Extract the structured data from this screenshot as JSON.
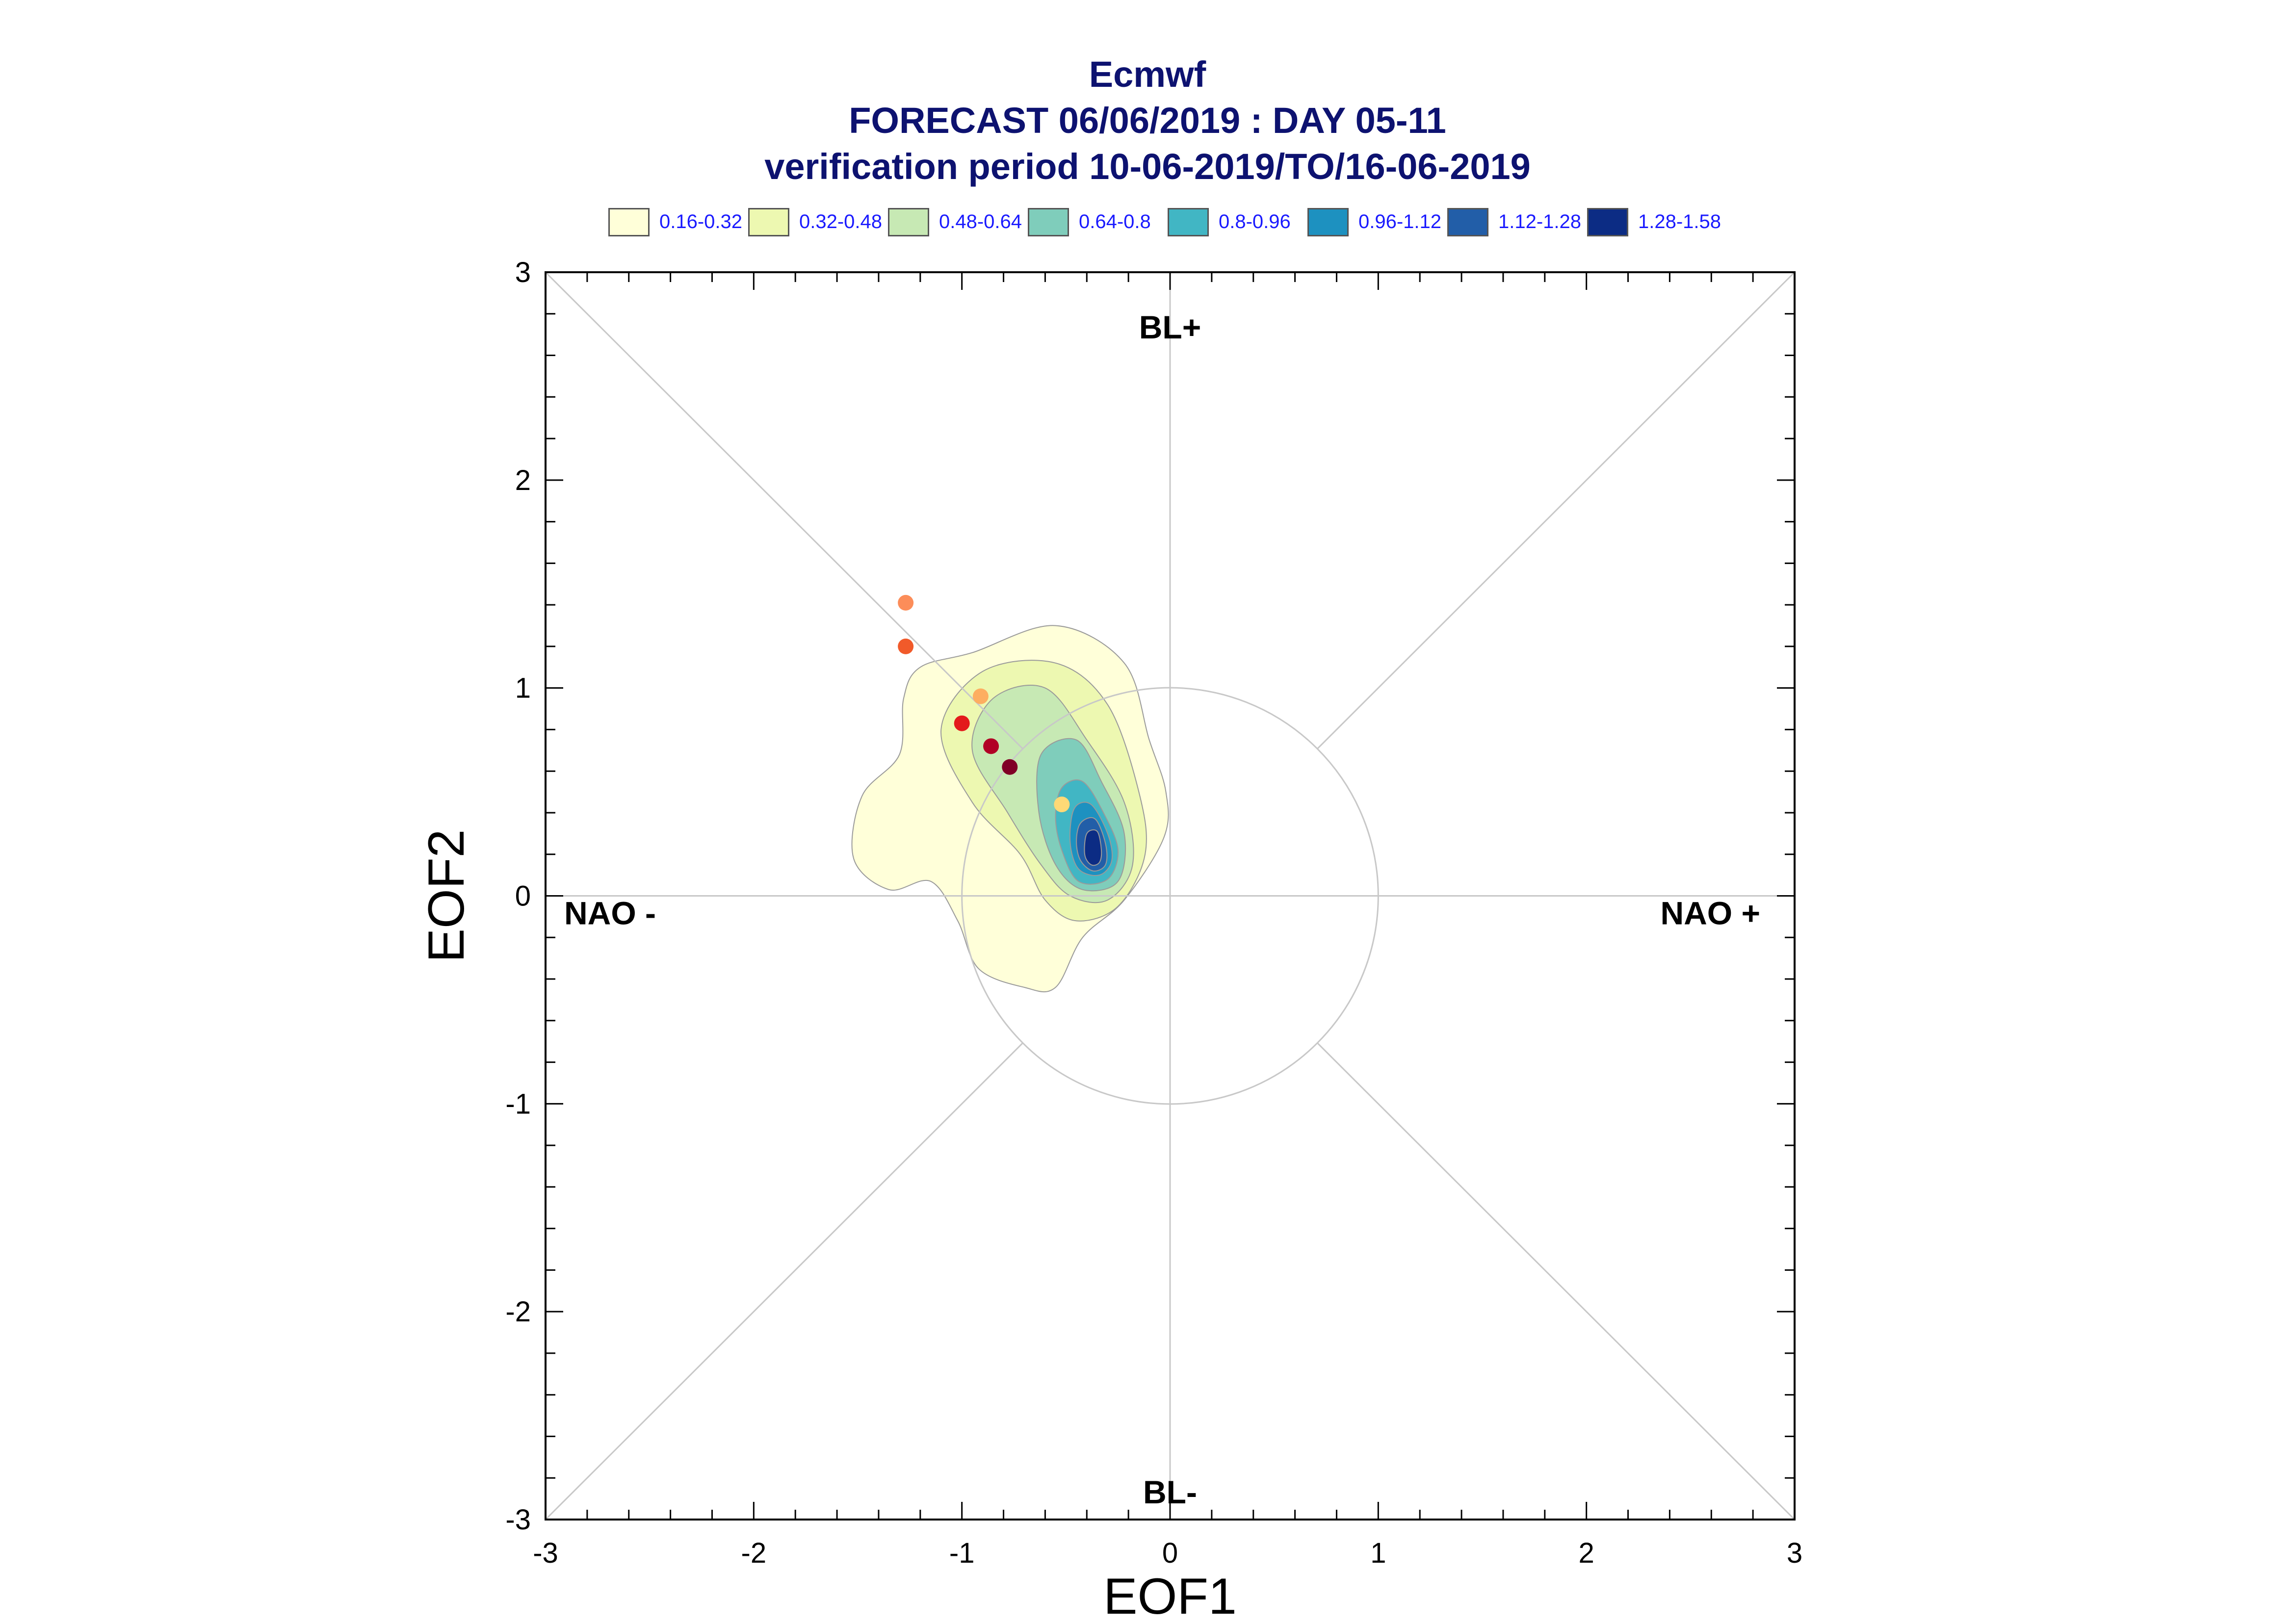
{
  "chart_data": {
    "type": "scatter",
    "title_lines": [
      "Ecmwf",
      "FORECAST 06/06/2019 : DAY 05-11",
      "verification period 10-06-2019/TO/16-06-2019"
    ],
    "xlabel": "EOF1",
    "ylabel": "EOF2",
    "xlim": [
      -3,
      3
    ],
    "ylim": [
      -3,
      3
    ],
    "xticks": [
      "-3",
      "-2",
      "-1",
      "0",
      "1",
      "2",
      "3"
    ],
    "yticks": [
      "-3",
      "-2",
      "-1",
      "0",
      "1",
      "2",
      "3"
    ],
    "regime_labels": {
      "top": "BL+",
      "bottom": "BL-",
      "left": "NAO -",
      "right": "NAO +"
    },
    "reference_circle_radius": 1,
    "diagonals": true,
    "legend": [
      {
        "label": "0.16-0.32",
        "color": "#ffffd9"
      },
      {
        "label": "0.32-0.48",
        "color": "#edf8b1"
      },
      {
        "label": "0.48-0.64",
        "color": "#c7e9b4"
      },
      {
        "label": "0.64-0.8",
        "color": "#7fcdbb"
      },
      {
        "label": "0.8-0.96",
        "color": "#41b6c4"
      },
      {
        "label": "0.96-1.12",
        "color": "#1d91c0"
      },
      {
        "label": "1.12-1.28",
        "color": "#225ea8"
      },
      {
        "label": "1.28-1.58",
        "color": "#0c2c84"
      }
    ],
    "density_contours": [
      {
        "level": "0.16-0.32",
        "color": "#ffffd9",
        "points": [
          [
            -0.95,
            1.17
          ],
          [
            -0.55,
            1.3
          ],
          [
            -0.22,
            1.12
          ],
          [
            -0.1,
            0.75
          ],
          [
            -0.02,
            0.5
          ],
          [
            -0.03,
            0.28
          ],
          [
            -0.22,
            -0.02
          ],
          [
            -0.42,
            -0.2
          ],
          [
            -0.55,
            -0.44
          ],
          [
            -0.7,
            -0.44
          ],
          [
            -0.92,
            -0.35
          ],
          [
            -1.02,
            -0.12
          ],
          [
            -1.15,
            0.07
          ],
          [
            -1.35,
            0.03
          ],
          [
            -1.52,
            0.18
          ],
          [
            -1.48,
            0.48
          ],
          [
            -1.3,
            0.68
          ],
          [
            -1.28,
            0.95
          ],
          [
            -1.2,
            1.1
          ]
        ]
      },
      {
        "level": "0.32-0.48",
        "color": "#edf8b1",
        "points": [
          [
            -0.9,
            1.08
          ],
          [
            -0.55,
            1.12
          ],
          [
            -0.3,
            0.92
          ],
          [
            -0.15,
            0.5
          ],
          [
            -0.12,
            0.2
          ],
          [
            -0.25,
            -0.05
          ],
          [
            -0.45,
            -0.12
          ],
          [
            -0.6,
            -0.02
          ],
          [
            -0.72,
            0.2
          ],
          [
            -0.95,
            0.45
          ],
          [
            -1.1,
            0.8
          ]
        ]
      },
      {
        "level": "0.48-0.64",
        "color": "#c7e9b4",
        "points": [
          [
            -0.85,
            0.95
          ],
          [
            -0.6,
            1.0
          ],
          [
            -0.4,
            0.75
          ],
          [
            -0.22,
            0.45
          ],
          [
            -0.18,
            0.15
          ],
          [
            -0.3,
            -0.02
          ],
          [
            -0.48,
            0.0
          ],
          [
            -0.62,
            0.15
          ],
          [
            -0.78,
            0.4
          ],
          [
            -0.95,
            0.7
          ]
        ]
      },
      {
        "level": "0.64-0.8",
        "color": "#7fcdbb",
        "points": [
          [
            -0.62,
            0.68
          ],
          [
            -0.45,
            0.75
          ],
          [
            -0.33,
            0.55
          ],
          [
            -0.22,
            0.3
          ],
          [
            -0.25,
            0.07
          ],
          [
            -0.42,
            0.03
          ],
          [
            -0.55,
            0.15
          ],
          [
            -0.63,
            0.4
          ]
        ]
      },
      {
        "level": "0.8-0.96",
        "color": "#41b6c4",
        "points": [
          [
            -0.52,
            0.52
          ],
          [
            -0.42,
            0.55
          ],
          [
            -0.32,
            0.4
          ],
          [
            -0.25,
            0.22
          ],
          [
            -0.3,
            0.08
          ],
          [
            -0.44,
            0.07
          ],
          [
            -0.52,
            0.22
          ],
          [
            -0.55,
            0.38
          ]
        ]
      },
      {
        "level": "0.96-1.12",
        "color": "#1d91c0",
        "points": [
          [
            -0.46,
            0.42
          ],
          [
            -0.38,
            0.44
          ],
          [
            -0.3,
            0.3
          ],
          [
            -0.28,
            0.17
          ],
          [
            -0.34,
            0.1
          ],
          [
            -0.44,
            0.13
          ],
          [
            -0.48,
            0.26
          ]
        ]
      },
      {
        "level": "1.12-1.28",
        "color": "#225ea8",
        "points": [
          [
            -0.43,
            0.35
          ],
          [
            -0.36,
            0.37
          ],
          [
            -0.31,
            0.25
          ],
          [
            -0.31,
            0.15
          ],
          [
            -0.37,
            0.12
          ],
          [
            -0.43,
            0.17
          ],
          [
            -0.45,
            0.26
          ]
        ]
      },
      {
        "level": "1.28-1.58",
        "color": "#0c2c84",
        "points": [
          [
            -0.4,
            0.3
          ],
          [
            -0.35,
            0.31
          ],
          [
            -0.33,
            0.22
          ],
          [
            -0.34,
            0.16
          ],
          [
            -0.38,
            0.15
          ],
          [
            -0.41,
            0.2
          ]
        ]
      }
    ],
    "points": [
      {
        "x": -1.27,
        "y": 1.41,
        "color": "#fc8d59"
      },
      {
        "x": -1.27,
        "y": 1.2,
        "color": "#f15a2a"
      },
      {
        "x": -0.91,
        "y": 0.96,
        "color": "#fdae61"
      },
      {
        "x": -1.0,
        "y": 0.83,
        "color": "#e31a1c"
      },
      {
        "x": -0.86,
        "y": 0.72,
        "color": "#b10026"
      },
      {
        "x": -0.77,
        "y": 0.62,
        "color": "#800026"
      },
      {
        "x": -0.52,
        "y": 0.44,
        "color": "#fed976"
      }
    ]
  }
}
